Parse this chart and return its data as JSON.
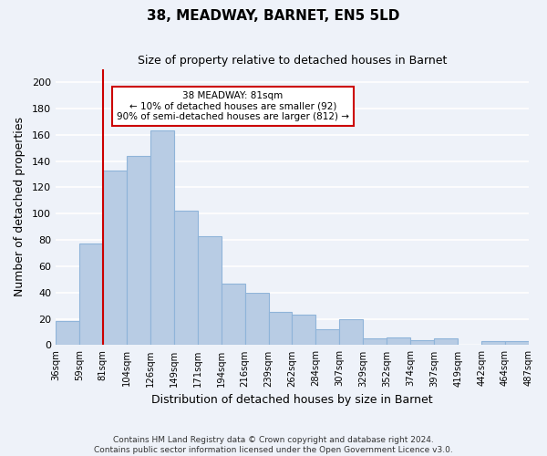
{
  "title1": "38, MEADWAY, BARNET, EN5 5LD",
  "title2": "Size of property relative to detached houses in Barnet",
  "xlabel": "Distribution of detached houses by size in Barnet",
  "ylabel": "Number of detached properties",
  "bin_labels": [
    "36sqm",
    "59sqm",
    "81sqm",
    "104sqm",
    "126sqm",
    "149sqm",
    "171sqm",
    "194sqm",
    "216sqm",
    "239sqm",
    "262sqm",
    "284sqm",
    "307sqm",
    "329sqm",
    "352sqm",
    "374sqm",
    "397sqm",
    "419sqm",
    "442sqm",
    "464sqm",
    "487sqm"
  ],
  "bar_values": [
    18,
    77,
    133,
    144,
    163,
    102,
    83,
    47,
    40,
    25,
    23,
    12,
    20,
    5,
    6,
    4,
    5,
    0,
    3,
    3
  ],
  "bar_color": "#b8cce4",
  "bar_edge_color": "#8fb4d9",
  "ylim": [
    0,
    210
  ],
  "yticks": [
    0,
    20,
    40,
    60,
    80,
    100,
    120,
    140,
    160,
    180,
    200
  ],
  "vline_x_index": 2,
  "vline_color": "#cc0000",
  "annotation_text": "38 MEADWAY: 81sqm\n← 10% of detached houses are smaller (92)\n90% of semi-detached houses are larger (812) →",
  "annotation_box_color": "#ffffff",
  "annotation_box_edgecolor": "#cc0000",
  "footer1": "Contains HM Land Registry data © Crown copyright and database right 2024.",
  "footer2": "Contains public sector information licensed under the Open Government Licence v3.0.",
  "background_color": "#eef2f9",
  "plot_bg_color": "#eef2f9",
  "grid_color": "#ffffff"
}
